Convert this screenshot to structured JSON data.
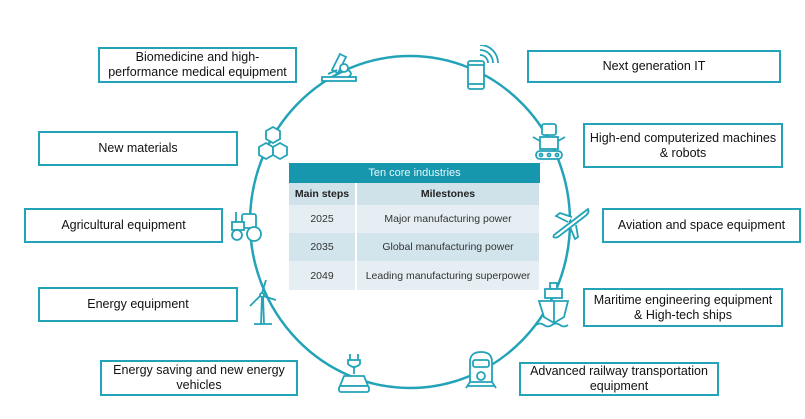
{
  "accent_color": "#23a3b8",
  "industries": [
    {
      "label": "Biomedicine and high-performance medical equipment",
      "icon": "microscope-icon"
    },
    {
      "label": "Next generation IT",
      "icon": "smartphone-icon"
    },
    {
      "label": "New materials",
      "icon": "hexagons-icon"
    },
    {
      "label": "High-end computerized machines & robots",
      "icon": "robot-icon"
    },
    {
      "label": "Agricultural equipment",
      "icon": "tractor-icon"
    },
    {
      "label": "Aviation and space equipment",
      "icon": "airplane-icon"
    },
    {
      "label": "Energy equipment",
      "icon": "wind-turbine-icon"
    },
    {
      "label": "Maritime engineering equipment & High-tech ships",
      "icon": "ship-icon"
    },
    {
      "label": "Energy saving and new energy vehicles",
      "icon": "electric-car-icon"
    },
    {
      "label": "Advanced railway transportation equipment",
      "icon": "train-icon"
    }
  ],
  "table": {
    "title": "Ten core industries",
    "headers": [
      "Main steps",
      "Milestones"
    ],
    "rows": [
      [
        "2025",
        "Major manufacturing power"
      ],
      [
        "2035",
        "Global manufacturing power"
      ],
      [
        "2049",
        "Leading manufacturing superpower"
      ]
    ]
  }
}
